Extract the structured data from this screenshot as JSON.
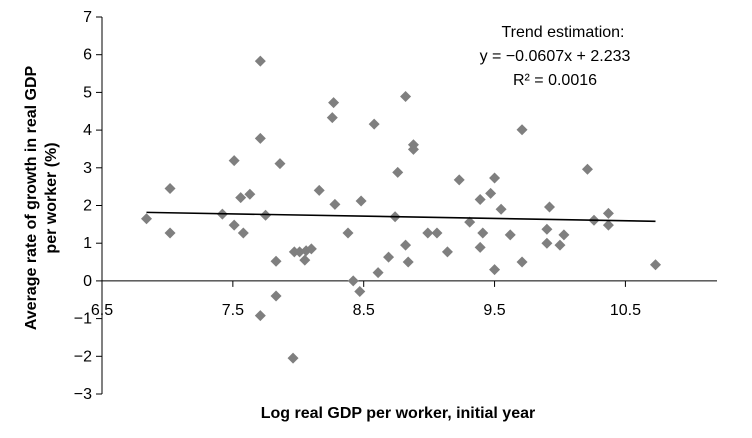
{
  "chart_data": {
    "type": "scatter",
    "xlabel": "Log real GDP per worker, initial year",
    "ylabel_lines": [
      "Average rate of growth in real GDP",
      "per worker (%)"
    ],
    "xlim": [
      6.5,
      11.2
    ],
    "ylim": [
      -3,
      7
    ],
    "x_ticks": [
      6.5,
      7.5,
      8.5,
      9.5,
      10.5
    ],
    "x_tick_labels": [
      "6.5",
      "7.5",
      "8.5",
      "9.5",
      "10.5"
    ],
    "y_ticks": [
      -3,
      -2,
      -1,
      0,
      1,
      2,
      3,
      4,
      5,
      6,
      7
    ],
    "y_tick_labels": [
      "−3",
      "−2",
      "−1",
      "0",
      "1",
      "2",
      "3",
      "4",
      "5",
      "6",
      "7"
    ],
    "grid": false,
    "marker": "diamond",
    "marker_color": "#7f7f7f",
    "trend_color": "#000000",
    "points": [
      {
        "x": 6.84,
        "y": 1.65
      },
      {
        "x": 7.02,
        "y": 2.45
      },
      {
        "x": 7.02,
        "y": 1.27
      },
      {
        "x": 7.42,
        "y": 1.77
      },
      {
        "x": 7.51,
        "y": 1.48
      },
      {
        "x": 7.51,
        "y": 3.19
      },
      {
        "x": 7.56,
        "y": 2.21
      },
      {
        "x": 7.58,
        "y": 1.27
      },
      {
        "x": 7.63,
        "y": 2.3
      },
      {
        "x": 7.71,
        "y": 5.83
      },
      {
        "x": 7.71,
        "y": 3.78
      },
      {
        "x": 7.71,
        "y": -0.92
      },
      {
        "x": 7.75,
        "y": 1.74
      },
      {
        "x": 7.83,
        "y": 0.52
      },
      {
        "x": 7.83,
        "y": -0.4
      },
      {
        "x": 7.86,
        "y": 3.11
      },
      {
        "x": 7.96,
        "y": -2.05
      },
      {
        "x": 7.97,
        "y": 0.77
      },
      {
        "x": 8.01,
        "y": 0.77
      },
      {
        "x": 8.05,
        "y": 0.55
      },
      {
        "x": 8.06,
        "y": 0.8
      },
      {
        "x": 8.1,
        "y": 0.85
      },
      {
        "x": 8.16,
        "y": 2.4
      },
      {
        "x": 8.27,
        "y": 4.73
      },
      {
        "x": 8.26,
        "y": 4.33
      },
      {
        "x": 8.28,
        "y": 2.03
      },
      {
        "x": 8.38,
        "y": 1.27
      },
      {
        "x": 8.42,
        "y": 0.0
      },
      {
        "x": 8.47,
        "y": -0.28
      },
      {
        "x": 8.48,
        "y": 2.12
      },
      {
        "x": 8.58,
        "y": 4.16
      },
      {
        "x": 8.61,
        "y": 0.22
      },
      {
        "x": 8.69,
        "y": 0.63
      },
      {
        "x": 8.74,
        "y": 1.7
      },
      {
        "x": 8.76,
        "y": 2.88
      },
      {
        "x": 8.82,
        "y": 4.89
      },
      {
        "x": 8.82,
        "y": 0.95
      },
      {
        "x": 8.84,
        "y": 0.5
      },
      {
        "x": 8.88,
        "y": 3.61
      },
      {
        "x": 8.88,
        "y": 3.49
      },
      {
        "x": 8.99,
        "y": 1.27
      },
      {
        "x": 9.06,
        "y": 1.27
      },
      {
        "x": 9.14,
        "y": 0.77
      },
      {
        "x": 9.23,
        "y": 2.68
      },
      {
        "x": 9.31,
        "y": 1.56
      },
      {
        "x": 9.39,
        "y": 0.89
      },
      {
        "x": 9.39,
        "y": 2.16
      },
      {
        "x": 9.41,
        "y": 1.27
      },
      {
        "x": 9.47,
        "y": 2.32
      },
      {
        "x": 9.5,
        "y": 2.73
      },
      {
        "x": 9.5,
        "y": 0.3
      },
      {
        "x": 9.55,
        "y": 1.9
      },
      {
        "x": 9.62,
        "y": 1.22
      },
      {
        "x": 9.71,
        "y": 4.01
      },
      {
        "x": 9.71,
        "y": 0.5
      },
      {
        "x": 9.9,
        "y": 1.37
      },
      {
        "x": 9.9,
        "y": 1.0
      },
      {
        "x": 9.92,
        "y": 1.96
      },
      {
        "x": 10.0,
        "y": 0.95
      },
      {
        "x": 10.03,
        "y": 1.22
      },
      {
        "x": 10.21,
        "y": 2.96
      },
      {
        "x": 10.26,
        "y": 1.61
      },
      {
        "x": 10.37,
        "y": 1.79
      },
      {
        "x": 10.37,
        "y": 1.48
      },
      {
        "x": 10.73,
        "y": 0.43
      }
    ],
    "trendline": {
      "slope": -0.0607,
      "intercept": 2.233,
      "x_start": 6.84,
      "x_end": 10.73
    },
    "annotation_lines": [
      "Trend estimation:",
      "y = −0.0607x + 2.233",
      "R² = 0.0016"
    ]
  }
}
